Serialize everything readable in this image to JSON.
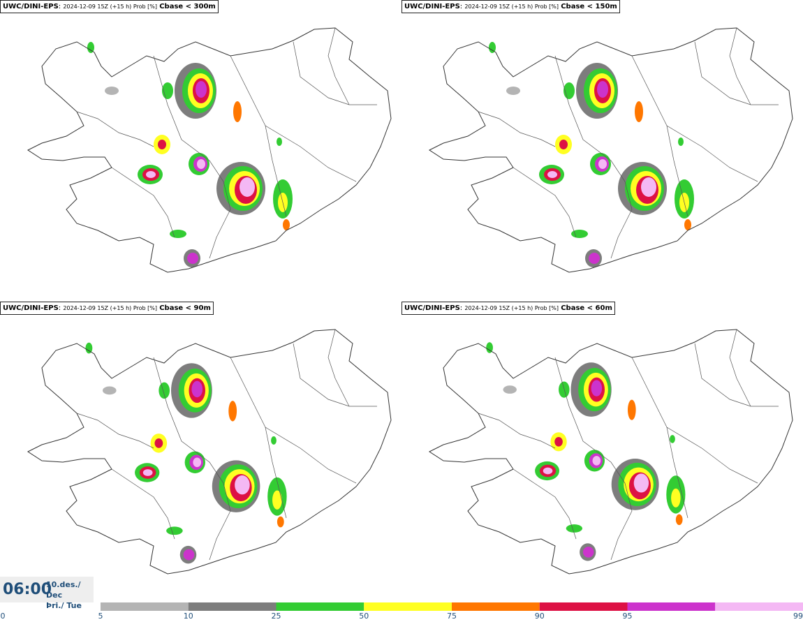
{
  "panels": [
    {
      "model": "UWC/DINI-EPS",
      "meta": "2024-12-09 15Z (+15 h) Prob [%]",
      "variable": "Cbase < 300m"
    },
    {
      "model": "UWC/DINI-EPS",
      "meta": "2024-12-09 15Z (+15 h) Prob [%]",
      "variable": "Cbase < 150m"
    },
    {
      "model": "UWC/DINI-EPS",
      "meta": "2024-12-09 15Z (+15 h) Prob [%]",
      "variable": "Cbase < 90m"
    },
    {
      "model": "UWC/DINI-EPS",
      "meta": "2024-12-09 15Z (+15 h) Prob [%]",
      "variable": "Cbase < 60m"
    }
  ],
  "valid_time": {
    "time": "06:00",
    "date_line1": "10.des./ Dec",
    "date_line2": "Þri./ Tue"
  },
  "legend": {
    "ticks": [
      "0",
      "5",
      "10",
      "25",
      "50",
      "75",
      "90",
      "95",
      "99"
    ],
    "colors": [
      "#b4b4b4",
      "#7d7d7d",
      "#33cc33",
      "#ffff22",
      "#ff7700",
      "#dd1144",
      "#cc33cc",
      "#f4b8f4"
    ]
  }
}
